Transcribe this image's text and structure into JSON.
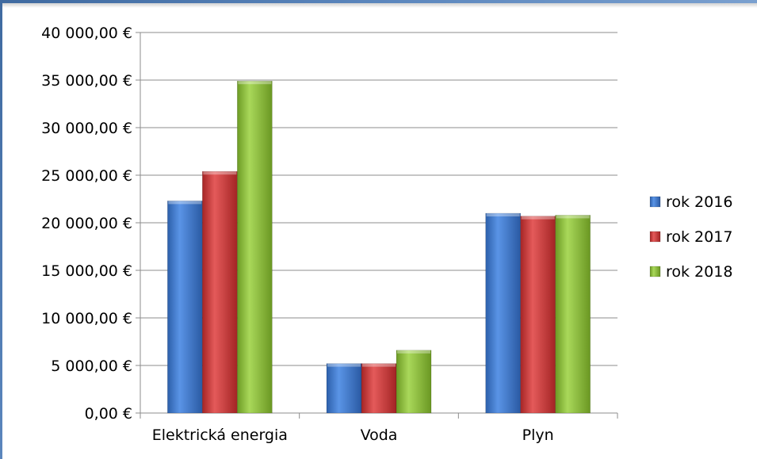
{
  "chart_data": {
    "type": "bar",
    "categories": [
      "Elektrická energia",
      "Voda",
      "Plyn"
    ],
    "series": [
      {
        "name": "rok 2016",
        "values": [
          22300,
          5200,
          21000
        ],
        "color": "#3a77d0"
      },
      {
        "name": "rok 2017",
        "values": [
          25400,
          5200,
          20700
        ],
        "color": "#d03a3a"
      },
      {
        "name": "rok 2018",
        "values": [
          34900,
          6600,
          20800
        ],
        "color": "#8cbe3a"
      }
    ],
    "yticks": [
      "0,00 €",
      "5 000,00 €",
      "10 000,00 €",
      "15 000,00 €",
      "20 000,00 €",
      "25 000,00 €",
      "30 000,00 €",
      "35 000,00 €",
      "40 000,00 €"
    ],
    "ylim": [
      0,
      40000
    ],
    "grid": true,
    "legend_position": "right",
    "title": "",
    "xlabel": "",
    "ylabel": ""
  }
}
